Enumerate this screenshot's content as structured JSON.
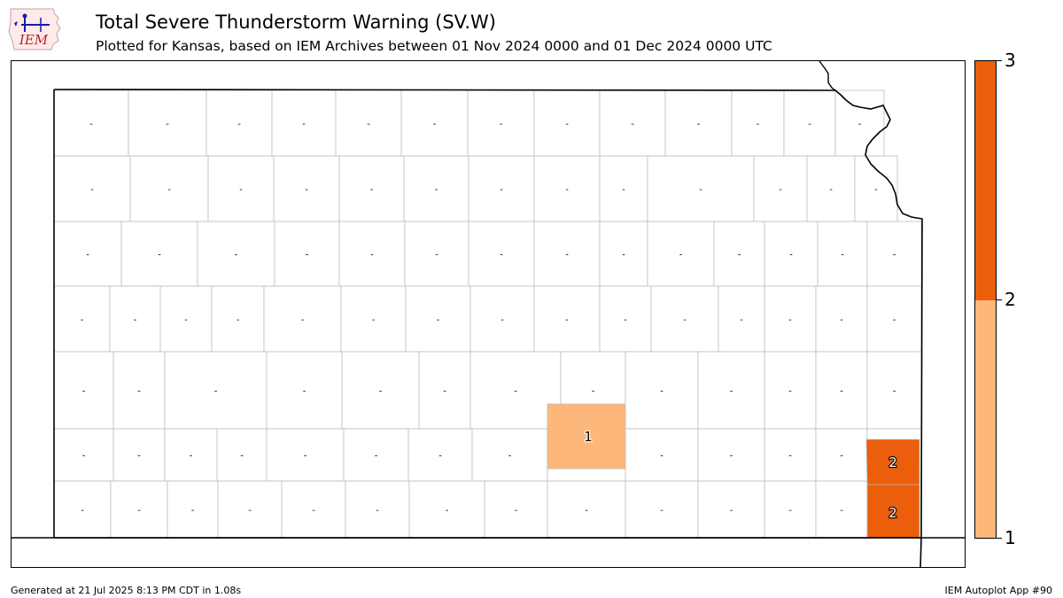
{
  "logo": {
    "text": "IEM",
    "icon": "iem-weather-station-logo"
  },
  "title": "Total Severe Thunderstorm Warning (SV.W)",
  "subtitle": "Plotted for Kansas, based on IEM Archives  between 01 Nov 2024 0000 and 01 Dec 2024 0000 UTC",
  "colorbar": {
    "ticks": [
      "1",
      "2",
      "3"
    ],
    "colors": {
      "low": "#fdb77b",
      "high": "#eb5e0b"
    }
  },
  "map": {
    "state": "Kansas",
    "zero_marker": "-",
    "colors": {
      "zero": "#ffffff",
      "one": "#fdb77b",
      "two": "#eb5e0b",
      "county_line": "#bdbdbd",
      "state_line": "#000000"
    },
    "counts": [
      {
        "label": "1",
        "value": 1
      },
      {
        "label": "2",
        "value": 2
      },
      {
        "label": "2",
        "value": 2
      }
    ]
  },
  "footer": {
    "generated": "Generated at 21 Jul 2025 8:13 PM CDT in 1.08s",
    "app": "IEM Autoplot App #90"
  }
}
